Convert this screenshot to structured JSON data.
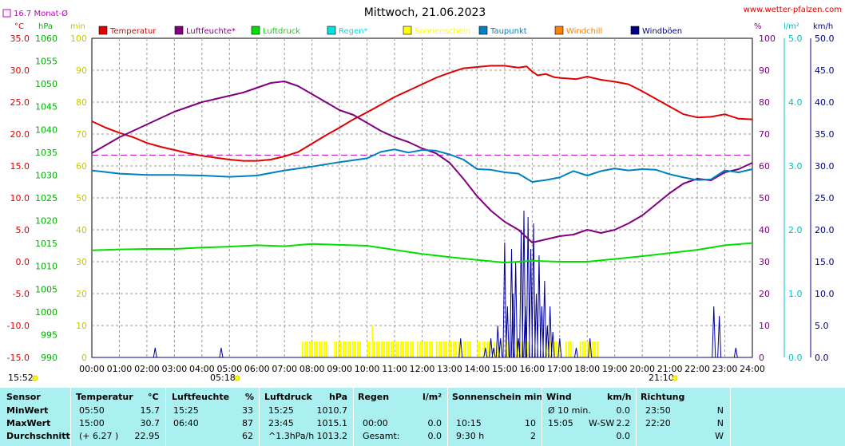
{
  "chart_data": {
    "type": "line",
    "title": "Mittwoch, 21.06.2023",
    "site_label": "www.wetter-pfalzen.com",
    "monthly_avg_label": "16.7 Monat-Ø",
    "monthly_avg_temp": 16.7,
    "axis_units": {
      "temp": "°C",
      "pressure": "hPa",
      "sun": "min",
      "humidity": "%",
      "rain": "l/m²",
      "wind": "km/h"
    },
    "axes": {
      "temp": {
        "ticks": [
          "35.0",
          "30.0",
          "25.0",
          "20.0",
          "15.0",
          "10.0",
          "5.0",
          "0.0",
          "-5.0",
          "-10.0",
          "-15.0"
        ],
        "range": [
          -15,
          35
        ]
      },
      "pressure": {
        "ticks": [
          "1060",
          "1055",
          "1050",
          "1045",
          "1040",
          "1035",
          "1030",
          "1025",
          "1020",
          "1015",
          "1010",
          "1005",
          "1000",
          "995",
          "990"
        ],
        "range": [
          990,
          1060
        ]
      },
      "sun": {
        "ticks": [
          "100",
          "90",
          "80",
          "70",
          "60",
          "50",
          "40",
          "30",
          "20",
          "10",
          "0"
        ],
        "range": [
          0,
          100
        ]
      },
      "humidity": {
        "ticks": [
          "100",
          "90",
          "80",
          "70",
          "60",
          "50",
          "40",
          "30",
          "20",
          "10",
          "0"
        ],
        "range": [
          0,
          100
        ]
      },
      "rain": {
        "ticks": [
          "5.0",
          "4.0",
          "3.0",
          "2.0",
          "1.0",
          "0.0"
        ],
        "range": [
          0,
          5
        ]
      },
      "wind": {
        "ticks": [
          "50.0",
          "45.0",
          "40.0",
          "35.0",
          "30.0",
          "25.0",
          "20.0",
          "15.0",
          "10.0",
          "5.0",
          "0.0"
        ],
        "range": [
          0,
          50
        ]
      }
    },
    "x_labels": [
      "00:00",
      "01:00",
      "02:00",
      "03:00",
      "04:00",
      "05:00",
      "06:00",
      "07:00",
      "08:00",
      "09:00",
      "10:00",
      "11:00",
      "12:00",
      "13:00",
      "14:00",
      "15:00",
      "16:00",
      "17:00",
      "18:00",
      "19:00",
      "20:00",
      "21:00",
      "22:00",
      "23:00",
      "24:00"
    ],
    "x_range": [
      0,
      24
    ],
    "sunrise": "05:18",
    "sunset": "21:10",
    "time_corner": "15:52",
    "legend": [
      {
        "label": "Temperatur",
        "color": "#e00000"
      },
      {
        "label": "Luftfeuchte*",
        "color": "#800080"
      },
      {
        "label": "Luftdruck",
        "color": "#00e000"
      },
      {
        "label": "Regen*",
        "color": "#00e0e0"
      },
      {
        "label": "Sonnenschein",
        "color": "#ffff00"
      },
      {
        "label": "Taupunkt",
        "color": "#0080c0"
      },
      {
        "label": "Windchill",
        "color": "#ff8000"
      },
      {
        "label": "Windböen",
        "color": "#000080"
      }
    ],
    "series": [
      {
        "name": "Temperatur",
        "axis": "temp",
        "color": "#e00000",
        "x": [
          0,
          0.5,
          1,
          1.5,
          2,
          2.5,
          3,
          3.5,
          4,
          4.5,
          5,
          5.5,
          6,
          6.5,
          7,
          7.5,
          8,
          8.5,
          9,
          9.5,
          10,
          10.5,
          11,
          11.5,
          12,
          12.5,
          13,
          13.5,
          14,
          14.5,
          15,
          15.5,
          15.8,
          16,
          16.2,
          16.5,
          16.8,
          17,
          17.3,
          17.6,
          18,
          18.5,
          19,
          19.5,
          20,
          20.5,
          21,
          21.5,
          22,
          22.5,
          23,
          23.5,
          24
        ],
        "y": [
          22.0,
          21.0,
          20.2,
          19.5,
          18.6,
          18.0,
          17.5,
          17.0,
          16.6,
          16.3,
          16.0,
          15.8,
          15.8,
          16.0,
          16.5,
          17.2,
          18.5,
          19.8,
          21.0,
          22.3,
          23.4,
          24.6,
          25.8,
          26.8,
          27.8,
          28.8,
          29.6,
          30.3,
          30.5,
          30.7,
          30.7,
          30.4,
          30.6,
          29.8,
          29.2,
          29.4,
          28.9,
          28.8,
          28.7,
          28.6,
          29.0,
          28.5,
          28.2,
          27.8,
          26.7,
          25.5,
          24.3,
          23.1,
          22.6,
          22.7,
          23.1,
          22.4,
          22.3
        ]
      },
      {
        "name": "Luftfeuchte*",
        "axis": "humidity",
        "color": "#800080",
        "x": [
          0,
          0.5,
          1,
          1.5,
          2,
          2.5,
          3,
          3.5,
          4,
          4.5,
          5,
          5.5,
          6,
          6.5,
          7,
          7.5,
          8,
          8.5,
          9,
          9.5,
          10,
          10.5,
          11,
          11.5,
          12,
          12.5,
          13,
          13.5,
          14,
          14.5,
          15,
          15.5,
          16,
          16.5,
          17,
          17.5,
          18,
          18.5,
          19,
          19.5,
          20,
          20.5,
          21,
          21.5,
          22,
          22.5,
          23,
          23.5,
          24
        ],
        "y": [
          64,
          66.5,
          69,
          71,
          73,
          75,
          77,
          78.5,
          80,
          81,
          82,
          83,
          84.5,
          86,
          86.5,
          85,
          82.5,
          80,
          77.5,
          76,
          73.5,
          71,
          69,
          67.5,
          65.5,
          64,
          61,
          56,
          50.5,
          46,
          42.5,
          40,
          36,
          37,
          38,
          38.5,
          40,
          39,
          40,
          42,
          44.5,
          48,
          51.5,
          54.5,
          56,
          55.5,
          58,
          59,
          61
        ]
      },
      {
        "name": "Luftdruck",
        "axis": "pressure",
        "color": "#00e000",
        "x": [
          0,
          1,
          2,
          3,
          4,
          5,
          6,
          7,
          8,
          9,
          10,
          11,
          12,
          13,
          14,
          15,
          16,
          17,
          18,
          19,
          20,
          21,
          22,
          23,
          24
        ],
        "y": [
          1013.5,
          1013.7,
          1013.8,
          1013.8,
          1014.1,
          1014.3,
          1014.6,
          1014.4,
          1014.9,
          1014.7,
          1014.5,
          1013.6,
          1012.7,
          1012.0,
          1011.4,
          1010.8,
          1011.2,
          1011.0,
          1011.0,
          1011.6,
          1012.2,
          1012.9,
          1013.6,
          1014.6,
          1015.1
        ]
      },
      {
        "name": "Taupunkt",
        "axis": "temp",
        "color": "#0080c0",
        "x": [
          0,
          1,
          2,
          3,
          4,
          5,
          6,
          7,
          8,
          9,
          10,
          10.5,
          11,
          11.5,
          12,
          12.5,
          13,
          13.5,
          14,
          14.5,
          15,
          15.5,
          16,
          16.5,
          17,
          17.5,
          18,
          18.5,
          19,
          19.5,
          20,
          20.5,
          21,
          21.5,
          22,
          22.5,
          23,
          23.5,
          24
        ],
        "y": [
          14.3,
          13.8,
          13.6,
          13.6,
          13.5,
          13.3,
          13.5,
          14.3,
          14.9,
          15.6,
          16.2,
          17.2,
          17.6,
          17.1,
          17.5,
          17.4,
          16.8,
          16.0,
          14.5,
          14.4,
          14.0,
          13.8,
          12.5,
          12.8,
          13.2,
          14.2,
          13.5,
          14.2,
          14.6,
          14.3,
          14.5,
          14.4,
          13.7,
          13.2,
          12.8,
          12.9,
          14.3,
          14.0,
          14.5
        ]
      }
    ],
    "sunshine_blocks": [
      [
        7.6,
        8.6
      ],
      [
        8.8,
        9.8
      ],
      [
        10.0,
        10.1
      ],
      [
        10.2,
        11.7
      ],
      [
        11.8,
        12.4
      ],
      [
        12.5,
        13.4
      ],
      [
        13.5,
        13.8
      ],
      [
        14.0,
        14.1
      ],
      [
        14.2,
        14.5
      ],
      [
        14.6,
        14.9
      ],
      [
        15.0,
        15.9
      ],
      [
        16.5,
        17.0
      ],
      [
        17.2,
        17.5
      ],
      [
        17.7,
        18.4
      ]
    ],
    "sunshine_spike": {
      "x": 10.2,
      "value": 10
    },
    "wind_gusts": {
      "x": [
        2.3,
        4.7,
        13.4,
        14.3,
        14.5,
        14.6,
        14.75,
        14.85,
        15.0,
        15.1,
        15.25,
        15.3,
        15.4,
        15.5,
        15.6,
        15.7,
        15.75,
        15.85,
        15.95,
        16.05,
        16.15,
        16.25,
        16.35,
        16.45,
        16.55,
        16.65,
        16.75,
        17.0,
        17.6,
        18.1,
        22.6,
        22.8,
        23.4
      ],
      "y": [
        1.5,
        1.5,
        3,
        1.5,
        3,
        1.5,
        5,
        3,
        18,
        8,
        17,
        10,
        15,
        3,
        20,
        23,
        8,
        22,
        17,
        21,
        10,
        16,
        8,
        12,
        5,
        8,
        4,
        3,
        1.5,
        3,
        8,
        6.5,
        1.5
      ]
    },
    "monthly_avg_humidity_line": 63
  },
  "stats": {
    "headers": {
      "sensor": "Sensor",
      "temperatur": "Temperatur",
      "temp_unit": "°C",
      "luftfeuchte": "Luftfeuchte",
      "hum_unit": "%",
      "luftdruck": "Luftdruck",
      "press_unit": "hPa",
      "regen": "Regen",
      "rain_unit": "l/m²",
      "sonne": "Sonnenschein min",
      "wind": "Wind",
      "wind_unit": "km/h",
      "richtung": "Richtung"
    },
    "rows": [
      {
        "label": "MinWert",
        "t_time": "05:50",
        "t_val": "15.7",
        "h_time": "15:25",
        "h_val": "33",
        "p_time": "15:25",
        "p_val": "1010.7",
        "r_time": "",
        "r_val": "",
        "s_time": "",
        "s_val": "",
        "w_time": "Ø 10 min.",
        "w_dir": "",
        "w_val": "0.0",
        "d_time": "23:50",
        "d_val": "N"
      },
      {
        "label": "MaxWert",
        "t_time": "15:00",
        "t_val": "30.7",
        "h_time": "06:40",
        "h_val": "87",
        "p_time": "23:45",
        "p_val": "1015.1",
        "r_time": "00:00",
        "r_val": "0.0",
        "s_time": "10:15",
        "s_val": "10",
        "w_time": "15:05",
        "w_dir": "W-SW",
        "w_val": "2.2",
        "d_time": "22:20",
        "d_val": "N"
      },
      {
        "label": "Durchschnitt",
        "t_time": "(+ 6.27 )",
        "t_val": "22.95",
        "h_time": "",
        "h_val": "62",
        "p_time": "^1.3hPa/h",
        "p_val": "1013.2",
        "r_time": "Gesamt:",
        "r_val": "0.0",
        "s_time": "9:30 h",
        "s_val": "2",
        "w_time": "",
        "w_dir": "",
        "w_val": "0.0",
        "d_time": "",
        "d_val": "W"
      }
    ]
  }
}
